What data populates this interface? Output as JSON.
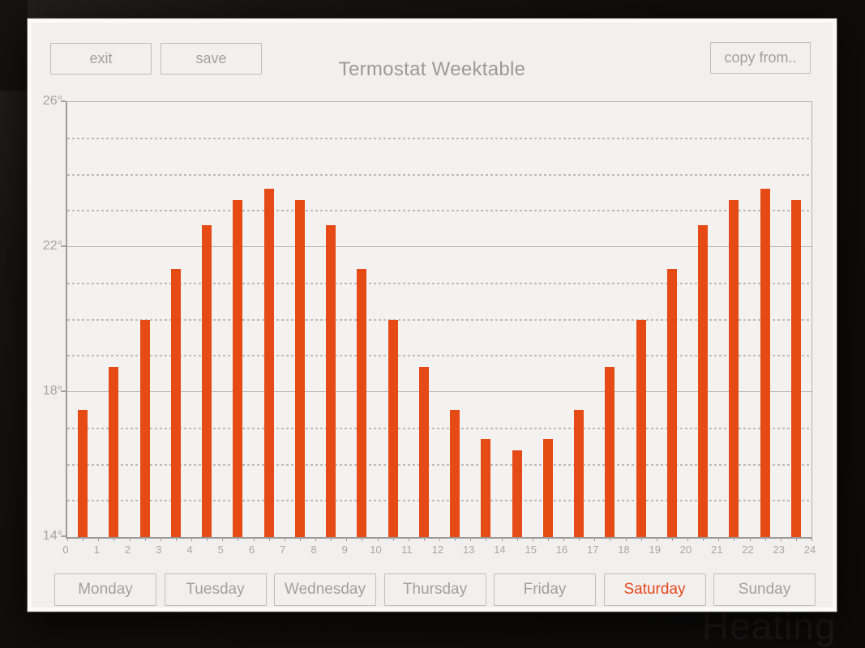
{
  "header": {
    "title": "Termostat Weektable",
    "exit_label": "exit",
    "save_label": "save",
    "copy_from_label": "copy from.."
  },
  "background": {
    "faint_text": "Heating"
  },
  "chart_data": {
    "type": "bar",
    "title": "",
    "x": [
      0,
      1,
      2,
      3,
      4,
      5,
      6,
      7,
      8,
      9,
      10,
      11,
      12,
      13,
      14,
      15,
      16,
      17,
      18,
      19,
      20,
      21,
      22,
      23
    ],
    "values": [
      17.5,
      18.7,
      20.0,
      21.4,
      22.6,
      23.3,
      23.6,
      23.3,
      22.6,
      21.4,
      20.0,
      18.7,
      17.5,
      16.7,
      16.4,
      16.7,
      17.5,
      18.7,
      20.0,
      21.4,
      22.6,
      23.3,
      23.6,
      23.3
    ],
    "xlim": [
      0,
      24
    ],
    "ylim": [
      14,
      26
    ],
    "y_major_ticks": [
      26,
      22,
      18,
      14
    ],
    "y_major_tick_labels": [
      "26°",
      "22°",
      "18°",
      "14°"
    ],
    "y_minor_tick_step": 1,
    "x_tick_labels": [
      "0",
      "1",
      "2",
      "3",
      "4",
      "5",
      "6",
      "7",
      "8",
      "9",
      "10",
      "11",
      "12",
      "13",
      "14",
      "15",
      "16",
      "17",
      "18",
      "19",
      "20",
      "21",
      "22",
      "23",
      "24"
    ],
    "x_minor_tick_step": 0.5,
    "grid": "solid every 4 degrees, dashed every 1 degree",
    "legend": "none",
    "bar_color": "#e64a15"
  },
  "days": [
    {
      "label": "Monday",
      "selected": false
    },
    {
      "label": "Tuesday",
      "selected": false
    },
    {
      "label": "Wednesday",
      "selected": false
    },
    {
      "label": "Thursday",
      "selected": false
    },
    {
      "label": "Friday",
      "selected": false
    },
    {
      "label": "Saturday",
      "selected": true
    },
    {
      "label": "Sunday",
      "selected": false
    }
  ],
  "colors": {
    "accent_orange": "#e64a15",
    "selected_day_text": "#e8481c",
    "panel_background": "#f1f0ee"
  }
}
